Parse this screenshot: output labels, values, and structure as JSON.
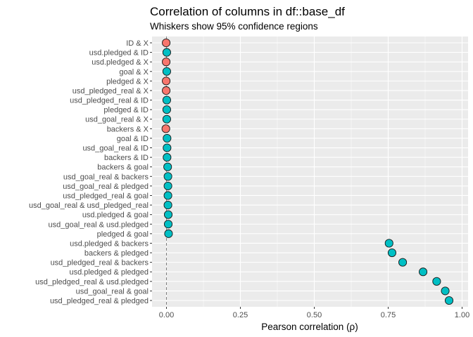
{
  "colors": {
    "panel": "#ebebeb",
    "grid_major": "#ffffff",
    "positive": "#00bfc4",
    "negative": "#f8766d",
    "point_outline": "#1a1a1a",
    "zero_line": "#7f7f7f"
  },
  "chart_data": {
    "type": "scatter",
    "title": "Correlation of columns in df::base_df",
    "subtitle": "Whiskers show 95% confidence regions",
    "xlabel": "Pearson correlation (ρ)",
    "ylabel": "",
    "xlim": [
      -0.03,
      1.0
    ],
    "xticks": [
      0,
      0.25,
      0.5,
      0.75,
      1.0
    ],
    "xtick_labels": [
      "0.00",
      "0.25",
      "0.50",
      "0.75",
      "1.00"
    ],
    "grid": true,
    "legend": "none",
    "reference_line": 0,
    "categories": [
      "ID & X",
      "usd.pledged & ID",
      "usd.pledged & X",
      "goal & X",
      "pledged & X",
      "usd_pledged_real & X",
      "usd_pledged_real & ID",
      "pledged & ID",
      "usd_goal_real & X",
      "backers & X",
      "goal & ID",
      "usd_goal_real & ID",
      "backers & ID",
      "backers & goal",
      "usd_goal_real & backers",
      "usd_goal_real & pledged",
      "usd_pledged_real & goal",
      "usd_goal_real & usd_pledged_real",
      "usd.pledged & goal",
      "usd_goal_real & usd.pledged",
      "pledged & goal",
      "usd.pledged & backers",
      "backers & pledged",
      "usd_pledged_real & backers",
      "usd.pledged & pledged",
      "usd_pledged_real & usd.pledged",
      "usd_goal_real & goal",
      "usd_pledged_real & pledged"
    ],
    "values": [
      -0.001,
      0.001,
      -0.001,
      0.001,
      -0.001,
      -0.001,
      0.001,
      0.001,
      0.001,
      -0.002,
      0.002,
      0.002,
      0.002,
      0.004,
      0.005,
      0.005,
      0.005,
      0.005,
      0.006,
      0.006,
      0.007,
      0.753,
      0.763,
      0.799,
      0.868,
      0.914,
      0.943,
      0.956
    ]
  }
}
